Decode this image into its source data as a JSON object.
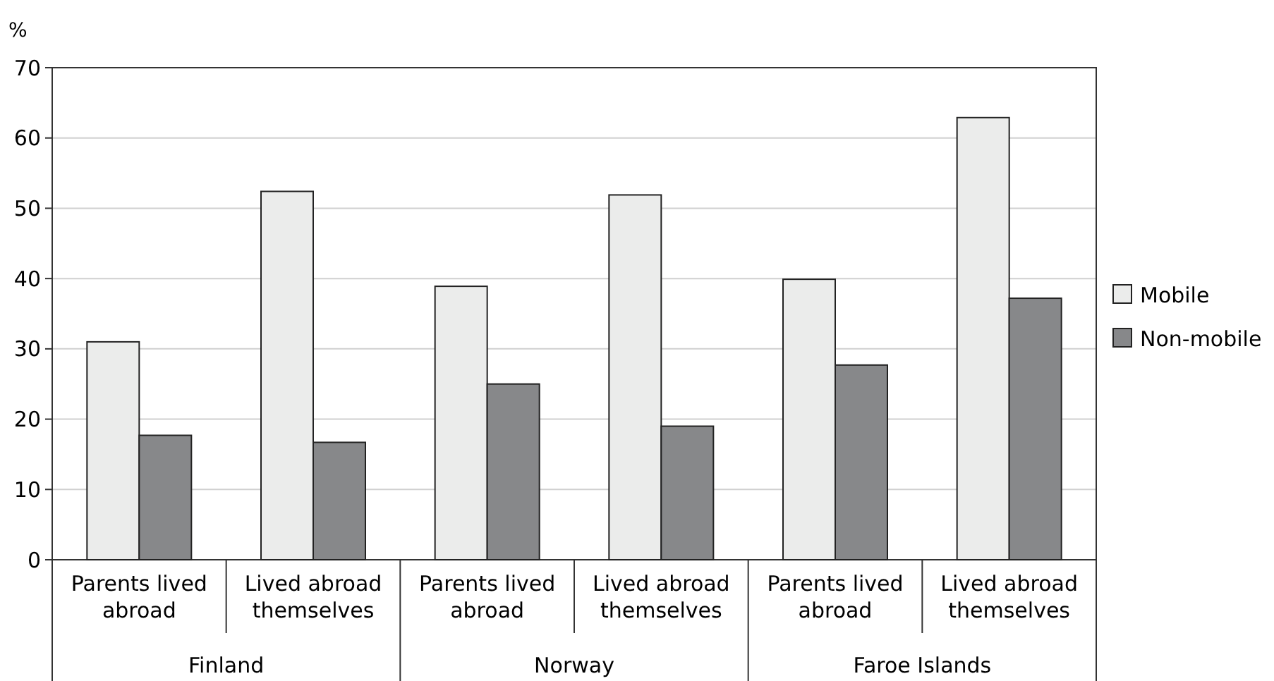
{
  "chart_data": {
    "type": "bar",
    "ylabel": "%",
    "categories": [
      "Parents lived abroad",
      "Lived abroad themselves",
      "Parents lived abroad",
      "Lived abroad themselves",
      "Parents lived abroad",
      "Lived abroad themselves"
    ],
    "series": [
      {
        "name": "Mobile",
        "color": "#ebeceb",
        "values": [
          31,
          52.4,
          38.9,
          51.9,
          39.9,
          62.9
        ]
      },
      {
        "name": "Non-mobile",
        "color": "#87888a",
        "values": [
          17.7,
          16.7,
          25,
          19,
          27.7,
          37.2
        ]
      }
    ],
    "annotations": [
      "Finland",
      "Norway",
      "Faroe Islands"
    ],
    "ylim": [
      0,
      70
    ],
    "yticks": [
      0,
      10,
      20,
      30,
      40,
      50,
      60,
      70
    ],
    "grid": "y",
    "legend": "right"
  }
}
